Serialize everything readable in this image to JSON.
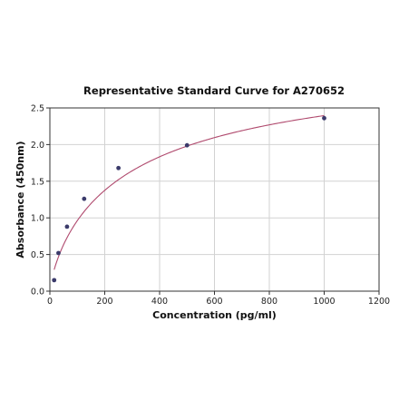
{
  "chart_data": {
    "type": "scatter",
    "title": "Representative Standard Curve for A270652",
    "xlabel": "Concentration (pg/ml)",
    "ylabel": "Absorbance (450nm)",
    "xlim": [
      0,
      1200
    ],
    "ylim": [
      0,
      2.5
    ],
    "x_ticks": [
      0,
      200,
      400,
      600,
      800,
      1000,
      1200
    ],
    "y_ticks": [
      0.0,
      0.5,
      1.0,
      1.5,
      2.0,
      2.5
    ],
    "x_tick_labels": [
      "0",
      "200",
      "400",
      "600",
      "800",
      "1000",
      "1200"
    ],
    "y_tick_labels": [
      "0.0",
      "0.5",
      "1.0",
      "1.5",
      "2.0",
      "2.5"
    ],
    "grid": true,
    "series": [
      {
        "x": [
          15.6,
          31.25,
          62.5,
          125,
          250,
          500,
          1000
        ],
        "y": [
          0.15,
          0.52,
          0.88,
          1.26,
          1.68,
          1.99,
          2.36
        ],
        "marker_color": "#3b3b6b",
        "fit": "4pl",
        "fit_color": "#b04a6e"
      }
    ]
  }
}
